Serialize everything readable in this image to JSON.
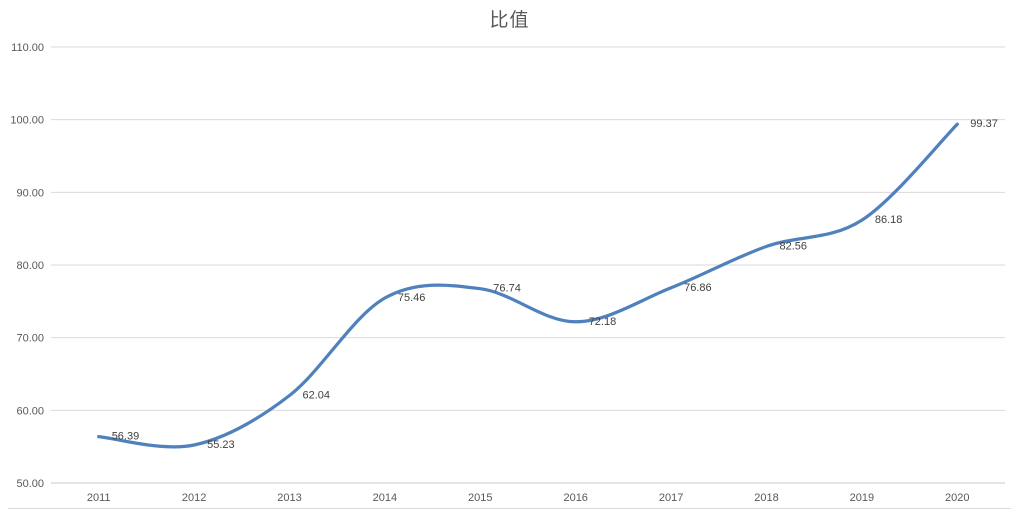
{
  "chart_data": {
    "type": "line",
    "title": "比值",
    "categories": [
      "2011",
      "2012",
      "2013",
      "2014",
      "2015",
      "2016",
      "2017",
      "2018",
      "2019",
      "2020"
    ],
    "series": [
      {
        "name": "比值",
        "values": [
          56.39,
          55.23,
          62.04,
          75.46,
          76.74,
          72.18,
          76.86,
          82.56,
          86.18,
          99.37
        ],
        "data_labels": [
          "56.39",
          "55.23",
          "62.04",
          "75.46",
          "76.74",
          "72.18",
          "76.86",
          "82.56",
          "86.18",
          "99.37"
        ]
      }
    ],
    "xlabel": "",
    "ylabel": "",
    "ylim": [
      50,
      110
    ],
    "ytick_step": 10,
    "yticks": [
      "50.00",
      "60.00",
      "70.00",
      "80.00",
      "90.00",
      "100.00",
      "110.00"
    ],
    "grid": true,
    "smooth_line": true,
    "markers": false,
    "legend_position": "none",
    "data_label_position": "right",
    "colors": {
      "line": "#4F81BD",
      "gridline": "#D9D9D9",
      "axis_line": "#CBCBCB",
      "axis_text": "#595959",
      "data_label_text": "#404040",
      "title_text": "#595959",
      "background": "#FFFFFF"
    }
  }
}
